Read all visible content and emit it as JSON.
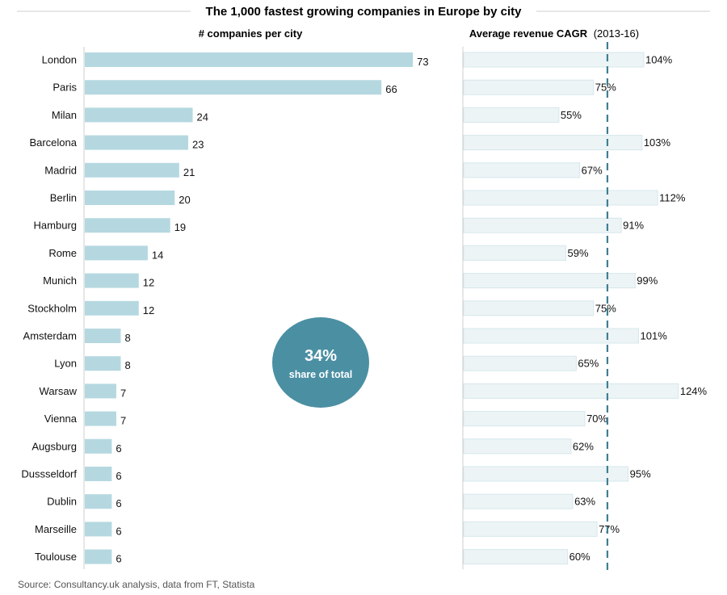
{
  "chart_data": {
    "type": "bar",
    "title": "The 1,000 fastest growing companies in Europe by city",
    "categories": [
      "London",
      "Paris",
      "Milan",
      "Barcelona",
      "Madrid",
      "Berlin",
      "Hamburg",
      "Rome",
      "Munich",
      "Stockholm",
      "Amsterdam",
      "Lyon",
      "Warsaw",
      "Vienna",
      "Augsburg",
      "Dussseldorf",
      "Dublin",
      "Marseille",
      "Toulouse"
    ],
    "panels": [
      {
        "name": "companies",
        "header": "# companies per city",
        "values": [
          73,
          66,
          24,
          23,
          21,
          20,
          19,
          14,
          12,
          12,
          8,
          8,
          7,
          7,
          6,
          6,
          6,
          6,
          6
        ],
        "value_suffix": "",
        "xlim": [
          0,
          78
        ],
        "color": "#b5d8e0"
      },
      {
        "name": "cagr",
        "header_bold": "Average revenue CAGR",
        "header_light": "(2013-16)",
        "values": [
          104,
          75,
          55,
          103,
          67,
          112,
          91,
          59,
          99,
          75,
          101,
          65,
          124,
          70,
          62,
          95,
          63,
          77,
          60
        ],
        "value_suffix": "%",
        "xlim": [
          0,
          132
        ],
        "reference_line": 83,
        "color": "#edf4f6"
      }
    ],
    "annotation": {
      "big": "34%",
      "small": "share of total"
    },
    "source": "Source: Consultancy.uk analysis, data from FT, Statista"
  },
  "colors": {
    "bar_left": "#b5d8e0",
    "bar_right": "#edf4f6",
    "bar_right_stroke": "#d6e7ec",
    "bubble": "#4b8fa3",
    "divider": "#cfcfcf",
    "ref_line": "#3e7f94"
  }
}
